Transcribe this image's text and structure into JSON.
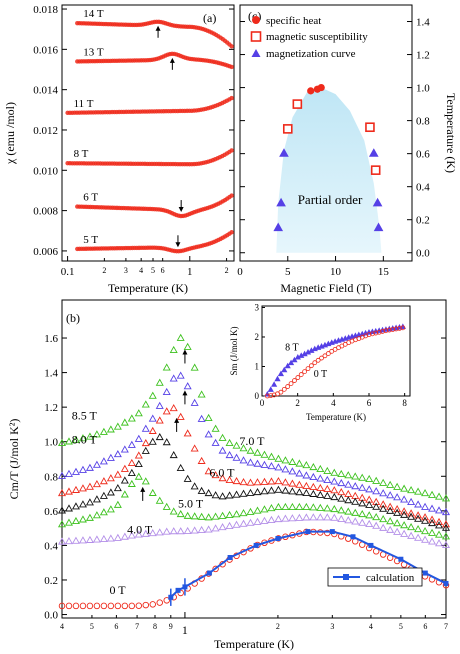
{
  "colors": {
    "red": "#ee2a1b",
    "blue": "#5540e6",
    "green": "#3cc11d",
    "black": "#111111",
    "purple": "#b38ee8",
    "calc": "#2357e0",
    "dome": "#bfe6f5"
  },
  "panel_tags": {
    "a": "(a)",
    "b": "(b)",
    "c": "(c)"
  },
  "chart_data": [
    {
      "id": "a",
      "type": "scatter",
      "ylabel": "χ (emu /mol)",
      "xlabel": "Temperature (K)",
      "xscale": "log",
      "xlim": [
        0.09,
        2.3
      ],
      "ylim": [
        0.0055,
        0.0182
      ],
      "yticks": [
        "0.006",
        "0.008",
        "0.010",
        "0.012",
        "0.014",
        "0.016",
        "0.018"
      ],
      "yticks_val": [
        0.006,
        0.008,
        0.01,
        0.012,
        0.014,
        0.016,
        0.018
      ],
      "xticks_major": [
        "0.1",
        "1"
      ],
      "xticks_major_val": [
        0.1,
        1
      ],
      "xticks_minor": [
        "2",
        "3",
        "4",
        "5",
        "6",
        "2"
      ],
      "xticks_minor_val": [
        0.2,
        0.3,
        0.4,
        0.5,
        0.6,
        2
      ],
      "series": [
        {
          "name": "14 T",
          "xstart": 0.12,
          "base": 0.0173,
          "slope": -0.0002,
          "kink": 0.55,
          "bump": 0.0002,
          "kinkSide": "before",
          "end_rise": -0.0009,
          "arrow": 0.55
        },
        {
          "name": "13 T",
          "xstart": 0.12,
          "base": 0.0154,
          "slope": 0.0001,
          "kink": 0.72,
          "bump": 0.0003,
          "kinkSide": "before",
          "end_rise": -0.0004,
          "arrow": 0.72
        },
        {
          "name": "11 T",
          "xstart": 0.1,
          "base": 0.01285,
          "slope": 0.0001,
          "kink": null,
          "bump": 0,
          "end_rise": 0.0006,
          "arrow": null
        },
        {
          "name": "8 T",
          "xstart": 0.1,
          "base": 0.01035,
          "slope": -5e-05,
          "kink": null,
          "bump": 0,
          "end_rise": 0.0007,
          "arrow": null
        },
        {
          "name": "6 T",
          "xstart": 0.12,
          "base": 0.0082,
          "slope": -0.0002,
          "kink": 0.85,
          "bump": -0.0003,
          "end_rise": 0.0008,
          "arrow": 0.85
        },
        {
          "name": "5 T",
          "xstart": 0.12,
          "base": 0.0061,
          "slope": 0.0001,
          "kink": 0.8,
          "bump": -0.0002,
          "end_rise": 0.0007,
          "arrow": 0.8
        }
      ]
    },
    {
      "id": "c",
      "type": "scatter",
      "xlabel": "Magnetic Field  (T)",
      "ylabel": "Temperature (K)",
      "xlim": [
        0,
        18
      ],
      "ylim": [
        -0.05,
        1.5
      ],
      "xticks": [
        "0",
        "5",
        "10",
        "15"
      ],
      "xticks_val": [
        0,
        5,
        10,
        15
      ],
      "yticks": [
        "0.0",
        "0.2",
        "0.4",
        "0.6",
        "0.8",
        "1.0",
        "1.2",
        "1.4"
      ],
      "yticks_val": [
        0,
        0.2,
        0.4,
        0.6,
        0.8,
        1.0,
        1.2,
        1.4
      ],
      "annotation": "Partial order",
      "legend": [
        "specific heat",
        "magnetic susceptibility",
        "magnetization curve"
      ],
      "specific_heat": [
        [
          7.4,
          0.98
        ],
        [
          8.1,
          0.99
        ],
        [
          8.5,
          1.0
        ]
      ],
      "susceptibility": [
        [
          5.0,
          0.75
        ],
        [
          6.0,
          0.9
        ],
        [
          13.6,
          0.76
        ],
        [
          14.2,
          0.5
        ]
      ],
      "magnetization": [
        [
          4.0,
          0.15
        ],
        [
          4.3,
          0.3
        ],
        [
          4.6,
          0.6
        ],
        [
          14.0,
          0.6
        ],
        [
          14.4,
          0.3
        ],
        [
          14.5,
          0.15
        ]
      ],
      "dome": [
        [
          3.8,
          -0.0
        ],
        [
          4.0,
          0.3
        ],
        [
          4.6,
          0.62
        ],
        [
          5.5,
          0.82
        ],
        [
          7.0,
          0.97
        ],
        [
          8.5,
          1.0
        ],
        [
          10.0,
          0.96
        ],
        [
          11.5,
          0.86
        ],
        [
          13.0,
          0.68
        ],
        [
          14.0,
          0.42
        ],
        [
          14.6,
          0.15
        ],
        [
          14.8,
          -0.0
        ]
      ]
    },
    {
      "id": "b",
      "type": "scatter",
      "xlabel": "Temperature (K)",
      "ylabel": "Cm/T (J/mol K²)",
      "xscale": "log",
      "xlim": [
        0.4,
        7.0
      ],
      "ylim": [
        -0.02,
        1.82
      ],
      "yticks": [
        "0.0",
        "0.2",
        "0.4",
        "0.6",
        "0.8",
        "1.0",
        "1.2",
        "1.4",
        "1.6"
      ],
      "yticks_val": [
        0,
        0.2,
        0.4,
        0.6,
        0.8,
        1.0,
        1.2,
        1.4,
        1.6
      ],
      "xticks_major": [
        "1"
      ],
      "xticks_major_val": [
        1
      ],
      "xticks_minor": [
        "4",
        "5",
        "6",
        "7",
        "8",
        "9",
        "2",
        "3",
        "4",
        "5",
        "6",
        "7"
      ],
      "xticks_minor_val": [
        0.4,
        0.5,
        0.6,
        0.7,
        0.8,
        0.9,
        2,
        3,
        4,
        5,
        6,
        7
      ],
      "legend": [
        "calculation"
      ],
      "series": [
        {
          "name": "8.5 T",
          "color": "green",
          "marker": "tri",
          "pts": [
            [
              0.4,
              0.99
            ],
            [
              0.5,
              1.03
            ],
            [
              0.6,
              1.08
            ],
            [
              0.7,
              1.15
            ],
            [
              0.8,
              1.28
            ],
            [
              0.87,
              1.42
            ],
            [
              0.93,
              1.55
            ],
            [
              0.97,
              1.6
            ],
            [
              1.0,
              1.58
            ],
            [
              1.05,
              1.5
            ],
            [
              1.12,
              1.3
            ],
            [
              1.2,
              1.12
            ],
            [
              1.35,
              1.0
            ],
            [
              1.6,
              0.95
            ],
            [
              2.0,
              0.9
            ],
            [
              2.5,
              0.86
            ],
            [
              3.0,
              0.82
            ],
            [
              4.0,
              0.78
            ],
            [
              5.0,
              0.73
            ],
            [
              6.0,
              0.7
            ],
            [
              7.0,
              0.67
            ]
          ],
          "arrow": 1.0
        },
        {
          "name": "8.0 T",
          "color": "blue",
          "marker": "tri",
          "pts": [
            [
              0.4,
              0.8
            ],
            [
              0.5,
              0.85
            ],
            [
              0.6,
              0.92
            ],
            [
              0.7,
              1.0
            ],
            [
              0.8,
              1.15
            ],
            [
              0.87,
              1.28
            ],
            [
              0.93,
              1.38
            ],
            [
              0.97,
              1.38
            ],
            [
              1.02,
              1.32
            ],
            [
              1.1,
              1.18
            ],
            [
              1.2,
              1.03
            ],
            [
              1.35,
              0.93
            ],
            [
              1.6,
              0.88
            ],
            [
              2.0,
              0.85
            ],
            [
              2.5,
              0.8
            ],
            [
              3.0,
              0.77
            ],
            [
              4.0,
              0.72
            ],
            [
              5.0,
              0.67
            ],
            [
              6.0,
              0.62
            ],
            [
              7.0,
              0.59
            ]
          ],
          "arrow": 1.0
        },
        {
          "name": "7.0 T",
          "color": "red",
          "marker": "tri",
          "pts": [
            [
              0.4,
              0.7
            ],
            [
              0.5,
              0.74
            ],
            [
              0.6,
              0.8
            ],
            [
              0.7,
              0.9
            ],
            [
              0.78,
              1.05
            ],
            [
              0.85,
              1.15
            ],
            [
              0.9,
              1.2
            ],
            [
              0.95,
              1.18
            ],
            [
              1.0,
              1.08
            ],
            [
              1.1,
              0.92
            ],
            [
              1.2,
              0.82
            ],
            [
              1.35,
              0.78
            ],
            [
              1.6,
              0.76
            ],
            [
              2.0,
              0.77
            ],
            [
              2.5,
              0.74
            ],
            [
              3.0,
              0.72
            ],
            [
              4.0,
              0.66
            ],
            [
              5.0,
              0.6
            ],
            [
              6.0,
              0.56
            ],
            [
              7.0,
              0.52
            ]
          ],
          "arrow": 0.94
        },
        {
          "name": "6.0 T",
          "color": "black",
          "marker": "tri",
          "pts": [
            [
              0.4,
              0.6
            ],
            [
              0.5,
              0.65
            ],
            [
              0.6,
              0.72
            ],
            [
              0.7,
              0.85
            ],
            [
              0.76,
              0.97
            ],
            [
              0.82,
              1.03
            ],
            [
              0.87,
              1.0
            ],
            [
              0.92,
              0.92
            ],
            [
              1.0,
              0.8
            ],
            [
              1.1,
              0.72
            ],
            [
              1.3,
              0.68
            ],
            [
              1.6,
              0.7
            ],
            [
              2.0,
              0.72
            ],
            [
              2.5,
              0.7
            ],
            [
              3.0,
              0.68
            ],
            [
              4.0,
              0.63
            ],
            [
              5.0,
              0.58
            ],
            [
              6.0,
              0.54
            ],
            [
              7.0,
              0.5
            ]
          ],
          "arrow": null
        },
        {
          "name": "5.0 T",
          "color": "green",
          "marker": "tri",
          "pts": [
            [
              0.4,
              0.52
            ],
            [
              0.5,
              0.56
            ],
            [
              0.6,
              0.62
            ],
            [
              0.66,
              0.73
            ],
            [
              0.7,
              0.8
            ],
            [
              0.74,
              0.78
            ],
            [
              0.8,
              0.68
            ],
            [
              0.9,
              0.6
            ],
            [
              1.0,
              0.57
            ],
            [
              1.2,
              0.56
            ],
            [
              1.5,
              0.58
            ],
            [
              2.0,
              0.62
            ],
            [
              2.5,
              0.62
            ],
            [
              3.0,
              0.61
            ],
            [
              4.0,
              0.57
            ],
            [
              5.0,
              0.52
            ],
            [
              6.0,
              0.48
            ],
            [
              7.0,
              0.45
            ]
          ],
          "arrow": 0.73
        },
        {
          "name": "4.0 T",
          "color": "purple",
          "marker": "tri",
          "pts": [
            [
              0.4,
              0.42
            ],
            [
              0.5,
              0.43
            ],
            [
              0.6,
              0.44
            ],
            [
              0.7,
              0.46
            ],
            [
              0.8,
              0.47
            ],
            [
              0.9,
              0.48
            ],
            [
              1.0,
              0.48
            ],
            [
              1.2,
              0.49
            ],
            [
              1.5,
              0.52
            ],
            [
              2.0,
              0.55
            ],
            [
              2.5,
              0.56
            ],
            [
              3.0,
              0.56
            ],
            [
              4.0,
              0.52
            ],
            [
              5.0,
              0.47
            ],
            [
              6.0,
              0.43
            ],
            [
              7.0,
              0.4
            ]
          ],
          "arrow": null
        },
        {
          "name": "0 T",
          "color": "red",
          "marker": "circ",
          "pts": [
            [
              0.4,
              0.05
            ],
            [
              0.5,
              0.05
            ],
            [
              0.6,
              0.05
            ],
            [
              0.7,
              0.05
            ],
            [
              0.8,
              0.06
            ],
            [
              0.9,
              0.09
            ],
            [
              1.0,
              0.14
            ],
            [
              1.2,
              0.24
            ],
            [
              1.4,
              0.32
            ],
            [
              1.7,
              0.4
            ],
            [
              2.0,
              0.44
            ],
            [
              2.5,
              0.48
            ],
            [
              3.0,
              0.47
            ],
            [
              3.5,
              0.43
            ],
            [
              4.0,
              0.38
            ],
            [
              5.0,
              0.3
            ],
            [
              6.0,
              0.22
            ],
            [
              7.0,
              0.17
            ]
          ],
          "arrow": null
        }
      ],
      "calculation": {
        "pts": [
          [
            0.9,
            0.1
          ],
          [
            0.95,
            0.14
          ],
          [
            1.0,
            0.16
          ],
          [
            1.2,
            0.24
          ],
          [
            1.4,
            0.33
          ],
          [
            1.7,
            0.4
          ],
          [
            2.0,
            0.44
          ],
          [
            2.5,
            0.48
          ],
          [
            3.0,
            0.48
          ],
          [
            3.5,
            0.45
          ],
          [
            4.0,
            0.4
          ],
          [
            5.0,
            0.32
          ],
          [
            6.0,
            0.24
          ],
          [
            7.0,
            0.18
          ]
        ],
        "err_pts": [
          0.9,
          1.0
        ]
      }
    },
    {
      "id": "b-inset",
      "type": "scatter",
      "xlabel": "Temperature (K)",
      "ylabel": "Sm (J/mol K)",
      "xlim": [
        0,
        8.3
      ],
      "ylim": [
        0,
        3.05
      ],
      "xticks": [
        "0",
        "2",
        "4",
        "6",
        "8"
      ],
      "xticks_val": [
        0,
        2,
        4,
        6,
        8
      ],
      "yticks": [
        "0",
        "1",
        "2",
        "3"
      ],
      "yticks_val": [
        0,
        1,
        2,
        3
      ],
      "series": [
        {
          "name": "8 T",
          "pts": [
            [
              0.3,
              0.05
            ],
            [
              0.6,
              0.3
            ],
            [
              1.0,
              0.7
            ],
            [
              1.5,
              1.05
            ],
            [
              2.0,
              1.3
            ],
            [
              3.0,
              1.6
            ],
            [
              4.0,
              1.82
            ],
            [
              5.0,
              2.0
            ],
            [
              6.0,
              2.15
            ],
            [
              7.0,
              2.25
            ],
            [
              8.0,
              2.35
            ]
          ]
        },
        {
          "name": "0 T",
          "pts": [
            [
              0.3,
              0.0
            ],
            [
              0.6,
              0.02
            ],
            [
              1.0,
              0.1
            ],
            [
              1.5,
              0.35
            ],
            [
              2.0,
              0.62
            ],
            [
              3.0,
              1.15
            ],
            [
              4.0,
              1.55
            ],
            [
              5.0,
              1.85
            ],
            [
              6.0,
              2.08
            ],
            [
              7.0,
              2.22
            ],
            [
              8.0,
              2.32
            ]
          ]
        }
      ]
    }
  ]
}
